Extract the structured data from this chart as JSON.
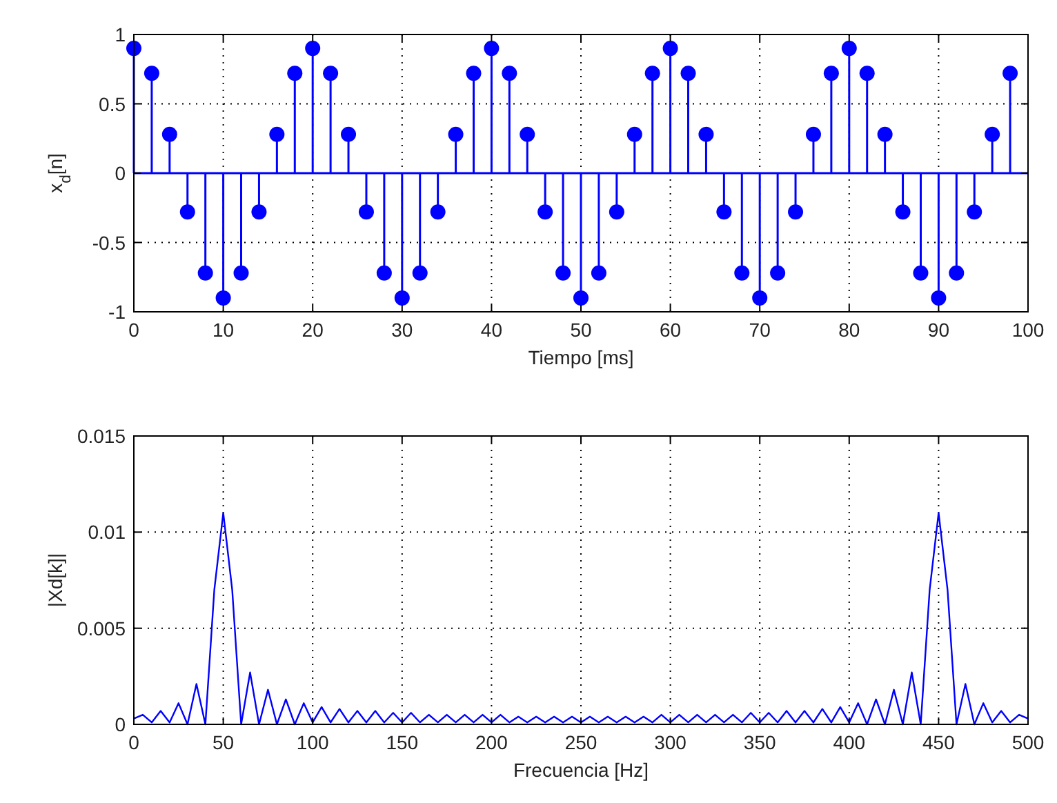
{
  "chart_data": [
    {
      "type": "lollipop",
      "xlabel": "Tiempo [ms]",
      "ylabel": "x$_{d}$[n]",
      "xlim": [
        0,
        100
      ],
      "xticks": [
        0,
        10,
        20,
        30,
        40,
        50,
        60,
        70,
        80,
        90,
        100
      ],
      "ylim": [
        -1,
        1
      ],
      "yticks": [
        -1,
        -0.5,
        0,
        0.5,
        1
      ],
      "grid": true,
      "marker": "circle",
      "ref_lines": [
        {
          "axis": "y",
          "value": 0,
          "color": "#0000ff"
        }
      ],
      "series": [
        {
          "color": "#0000ff",
          "x": [
            0,
            2,
            4,
            6,
            8,
            10,
            12,
            14,
            16,
            18,
            20,
            22,
            24,
            26,
            28,
            30,
            32,
            34,
            36,
            38,
            40,
            42,
            44,
            46,
            48,
            50,
            52,
            54,
            56,
            58,
            60,
            62,
            64,
            66,
            68,
            70,
            72,
            74,
            76,
            78,
            80,
            82,
            84,
            86,
            88,
            90,
            92,
            94,
            96,
            98
          ],
          "values": [
            0.9,
            0.72,
            0.28,
            -0.28,
            -0.72,
            -0.9,
            -0.72,
            -0.28,
            0.28,
            0.72,
            0.9,
            0.72,
            0.28,
            -0.28,
            -0.72,
            -0.9,
            -0.72,
            -0.28,
            0.28,
            0.72,
            0.9,
            0.72,
            0.28,
            -0.28,
            -0.72,
            -0.9,
            -0.72,
            -0.28,
            0.28,
            0.72,
            0.9,
            0.72,
            0.28,
            -0.28,
            -0.72,
            -0.9,
            -0.72,
            -0.28,
            0.28,
            0.72,
            0.9,
            0.72,
            0.28,
            -0.28,
            -0.72,
            -0.9,
            -0.72,
            -0.28,
            0.28,
            0.72
          ]
        }
      ]
    },
    {
      "type": "line",
      "xlabel": "Frecuencia [Hz]",
      "ylabel": "|Xd[k]|",
      "xlim": [
        0,
        500
      ],
      "xticks": [
        0,
        50,
        100,
        150,
        200,
        250,
        300,
        350,
        400,
        450,
        500
      ],
      "ylim": [
        0,
        0.015
      ],
      "yticks": [
        0,
        0.005,
        0.01,
        0.015
      ],
      "grid": true,
      "marker": "none",
      "line_style": "solid",
      "series": [
        {
          "color": "#0000ff",
          "x": [
            0,
            5,
            10,
            15,
            20,
            25,
            30,
            35,
            40,
            45,
            50,
            55,
            60,
            65,
            70,
            75,
            80,
            85,
            90,
            95,
            100,
            105,
            110,
            115,
            120,
            125,
            130,
            135,
            140,
            145,
            150,
            155,
            160,
            165,
            170,
            175,
            180,
            185,
            190,
            195,
            200,
            205,
            210,
            215,
            220,
            225,
            230,
            235,
            240,
            245,
            250,
            255,
            260,
            265,
            270,
            275,
            280,
            285,
            290,
            295,
            300,
            305,
            310,
            315,
            320,
            325,
            330,
            335,
            340,
            345,
            350,
            355,
            360,
            365,
            370,
            375,
            380,
            385,
            390,
            395,
            400,
            405,
            410,
            415,
            420,
            425,
            430,
            435,
            440,
            445,
            450,
            455,
            460,
            465,
            470,
            475,
            480,
            485,
            490,
            495,
            500
          ],
          "values": [
            0.0003,
            0.0005,
            0.0001,
            0.0007,
            0.0001,
            0.0011,
            0,
            0.0021,
            0,
            0.007,
            0.011,
            0.007,
            0,
            0.0027,
            0,
            0.0018,
            0,
            0.0013,
            0,
            0.0011,
            0.0001,
            0.0009,
            0.0001,
            0.0008,
            0.0001,
            0.0007,
            0.0001,
            0.0007,
            0.0001,
            0.0006,
            0.0001,
            0.0006,
            0.0001,
            0.0005,
            0.0001,
            0.0005,
            0.0001,
            0.0005,
            0.0001,
            0.0005,
            0.0001,
            0.0005,
            0.0001,
            0.0004,
            0.0001,
            0.0004,
            0.0001,
            0.0004,
            0.0001,
            0.0004,
            0.0001,
            0.0004,
            0.0001,
            0.0004,
            0.0001,
            0.0004,
            0.0001,
            0.0004,
            0.0001,
            0.0005,
            0.0001,
            0.0005,
            0.0001,
            0.0005,
            0.0001,
            0.0005,
            0.0001,
            0.0005,
            0.0001,
            0.0006,
            0.0001,
            0.0006,
            0.0001,
            0.0007,
            0.0001,
            0.0007,
            0.0001,
            0.0008,
            0.0001,
            0.0009,
            0.0001,
            0.0011,
            0,
            0.0013,
            0,
            0.0018,
            0,
            0.0027,
            0,
            0.007,
            0.011,
            0.007,
            0,
            0.0021,
            0,
            0.0011,
            0.0001,
            0.0007,
            0.0001,
            0.0005,
            0.0003
          ]
        }
      ]
    }
  ]
}
